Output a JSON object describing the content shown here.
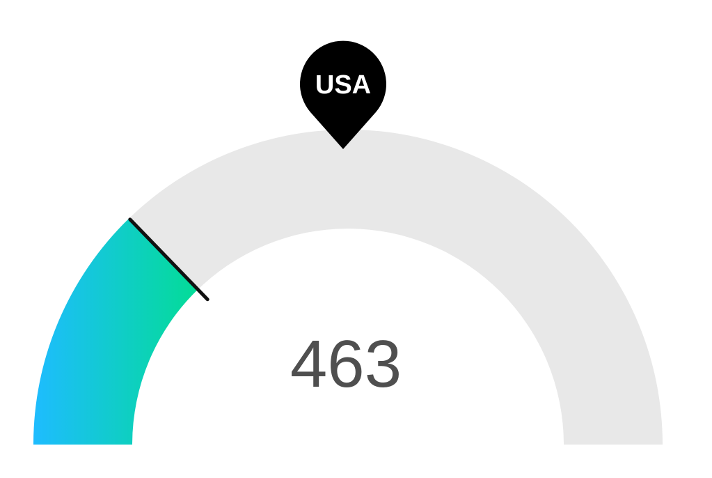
{
  "chart_data": {
    "type": "gauge",
    "value_label": "463",
    "fill_fraction": 0.255,
    "marker": {
      "label": "USA",
      "fraction": 0.5
    },
    "colors": {
      "track": "#e8e8e8",
      "fill_start": "#1ebcff",
      "fill_end": "#00e08a",
      "needle": "#111111",
      "marker": "#000000",
      "value_text": "#4f4f4f"
    }
  }
}
